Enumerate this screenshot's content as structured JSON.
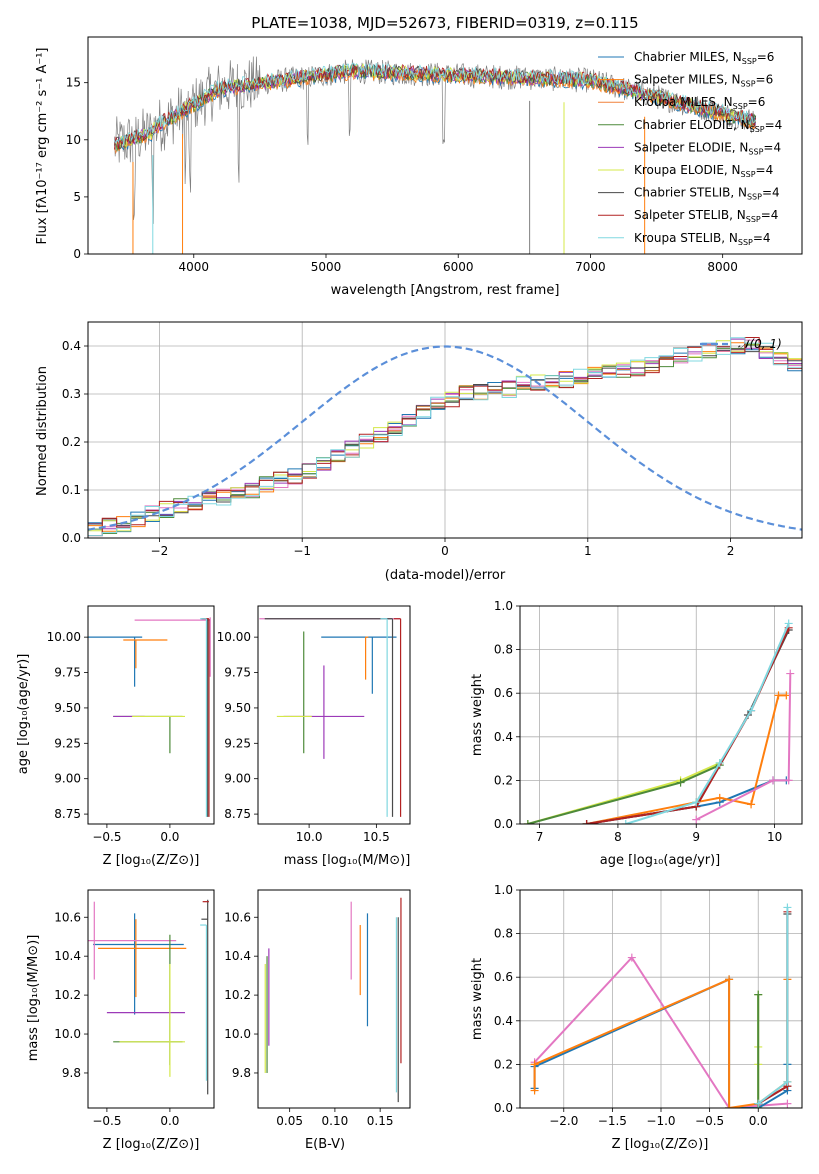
{
  "chart_data": [
    {
      "type": "line",
      "title": "PLATE=1038, MJD=52673, FIBERID=0319, z=0.115",
      "xlabel": "wavelength [Angstrom, rest frame]",
      "ylabel": "Flux [fλ10⁻¹⁷ erg cm⁻² s⁻¹ A⁻¹]",
      "xlim": [
        3200,
        8600
      ],
      "ylim": [
        0,
        19
      ],
      "xticks": [
        "4000",
        "5000",
        "6000",
        "7000",
        "8000"
      ],
      "yticks": [
        "0",
        "5",
        "10",
        "15"
      ],
      "legend_position": "upper-right",
      "data_range": [
        3400,
        8250
      ],
      "series": [
        {
          "name": "Chabrier MILES, NSSP=6",
          "label": "Chabrier MILES, N",
          "sub": "SSP",
          "suffix": "=6",
          "color": "#1f77b4"
        },
        {
          "name": "Salpeter MILES, NSSP=6",
          "label": "Salpeter MILES, N",
          "sub": "SSP",
          "suffix": "=6",
          "color": "#ff7f0e"
        },
        {
          "name": "Kroupa MILES, NSSP=6",
          "label": "Kroupa MILES, N",
          "sub": "SSP",
          "suffix": "=6",
          "color": "#f0813a"
        },
        {
          "name": "Chabrier ELODIE, NSSP=4",
          "label": "Chabrier ELODIE, N",
          "sub": "SSP",
          "suffix": "=4",
          "color": "#4d8a3a"
        },
        {
          "name": "Salpeter ELODIE, NSSP=4",
          "label": "Salpeter ELODIE, N",
          "sub": "SSP",
          "suffix": "=4",
          "color": "#9c3ab8"
        },
        {
          "name": "Kroupa ELODIE, NSSP=4",
          "label": "Kroupa ELODIE, N",
          "sub": "SSP",
          "suffix": "=4",
          "color": "#d4e84a"
        },
        {
          "name": "Chabrier STELIB, NSSP=4",
          "label": "Chabrier STELIB, N",
          "sub": "SSP",
          "suffix": "=4",
          "color": "#4a4a4a"
        },
        {
          "name": "Salpeter STELIB, NSSP=4",
          "label": "Salpeter STELIB, N",
          "sub": "SSP",
          "suffix": "=4",
          "color": "#b22222"
        },
        {
          "name": "Kroupa STELIB, NSSP=4",
          "label": "Kroupa STELIB, N",
          "sub": "SSP",
          "suffix": "=4",
          "color": "#80d8e0"
        }
      ],
      "data_color": "#808080"
    },
    {
      "type": "bar",
      "xlabel": "(data-model)/error",
      "ylabel": "Normed distribution",
      "xlim": [
        -2.5,
        2.5
      ],
      "ylim": [
        0,
        0.45
      ],
      "xticks": [
        "−2",
        "−1",
        "0",
        "1",
        "2"
      ],
      "yticks": [
        "0.0",
        "0.1",
        "0.2",
        "0.3",
        "0.4"
      ],
      "grid": true,
      "legend_position": "upper-right",
      "gaussian_label": "𝒩(0, 1)",
      "gaussian_color": "#5b8fd9",
      "bin_width": 0.1,
      "bin_start": -2.5,
      "base_values": [
        0.02,
        0.025,
        0.03,
        0.04,
        0.05,
        0.06,
        0.07,
        0.075,
        0.08,
        0.085,
        0.09,
        0.1,
        0.11,
        0.12,
        0.13,
        0.14,
        0.155,
        0.17,
        0.185,
        0.2,
        0.215,
        0.23,
        0.245,
        0.26,
        0.28,
        0.29,
        0.3,
        0.305,
        0.31,
        0.31,
        0.32,
        0.325,
        0.33,
        0.33,
        0.335,
        0.34,
        0.345,
        0.35,
        0.355,
        0.36,
        0.37,
        0.38,
        0.385,
        0.39,
        0.395,
        0.4,
        0.405,
        0.39,
        0.37,
        0.36,
        0.35,
        0.345,
        0.34,
        0.33,
        0.32,
        0.31,
        0.3,
        0.29,
        0.28,
        0.27,
        0.26,
        0.25,
        0.24,
        0.23,
        0.215,
        0.2,
        0.19,
        0.18,
        0.17,
        0.16,
        0.15,
        0.14,
        0.13,
        0.12,
        0.11,
        0.1,
        0.09,
        0.08,
        0.07,
        0.065,
        0.06,
        0.055,
        0.05,
        0.048,
        0.045,
        0.04,
        0.04,
        0.038,
        0.035,
        0.035,
        0.03,
        0.03,
        0.028,
        0.025,
        0.025,
        0.022,
        0.02,
        0.02,
        0.018,
        0.015
      ]
    },
    {
      "type": "scatter",
      "xlabel": "Z [log₁₀(Z/Z⊙)]",
      "ylabel": "age  [log₁₀(age/yr)]",
      "xlim": [
        -0.65,
        0.35
      ],
      "ylim": [
        8.68,
        10.22
      ],
      "xticks": [
        "−0.5",
        "0.0"
      ],
      "yticks": [
        "8.75",
        "9.00",
        "9.25",
        "9.50",
        "9.75",
        "10.00"
      ],
      "points": [
        {
          "x": -0.28,
          "y": 10.0,
          "xerr": [
            0.6,
            0.06
          ],
          "yerr": [
            0.35,
            0.0
          ],
          "color": "#1f77b4"
        },
        {
          "x": -0.27,
          "y": 9.98,
          "xerr": [
            0.1,
            0.25
          ],
          "yerr": [
            0.2,
            0.0
          ],
          "color": "#ff7f0e"
        },
        {
          "x": 0.32,
          "y": 10.12,
          "xerr": [
            0.6,
            0.0
          ],
          "yerr": [
            0.4,
            0.02
          ],
          "color": "#e377c2"
        },
        {
          "x": 0.0,
          "y": 9.44,
          "xerr": [
            0.45,
            0.1
          ],
          "yerr": [
            0.26,
            0.0
          ],
          "color": "#4d8a3a"
        },
        {
          "x": -0.3,
          "y": 9.44,
          "xerr": [
            0.15,
            0.1
          ],
          "yerr": [
            0.0,
            0.0
          ],
          "color": "#9c3ab8"
        },
        {
          "x": 0.0,
          "y": 9.44,
          "xerr": [
            0.3,
            0.12
          ],
          "yerr": [
            0.0,
            0.0
          ],
          "color": "#d4e84a"
        },
        {
          "x": 0.3,
          "y": 10.13,
          "xerr": [
            0.05,
            0.0
          ],
          "yerr": [
            1.4,
            0.0
          ],
          "color": "#4a4a4a"
        },
        {
          "x": 0.31,
          "y": 10.13,
          "xerr": [
            0.05,
            0.0
          ],
          "yerr": [
            1.4,
            0.0
          ],
          "color": "#b22222"
        },
        {
          "x": 0.29,
          "y": 10.13,
          "xerr": [
            0.05,
            0.0
          ],
          "yerr": [
            1.4,
            0.0
          ],
          "color": "#80d8e0"
        }
      ]
    },
    {
      "type": "scatter",
      "xlabel": "mass [log₁₀(M/M⊙)]",
      "xlim": [
        9.62,
        10.75
      ],
      "ylim": [
        8.68,
        10.22
      ],
      "xticks": [
        "10.0",
        "10.5"
      ],
      "yticks": [
        "8.75",
        "9.00",
        "9.25",
        "9.50",
        "9.75",
        "10.00"
      ],
      "points": [
        {
          "x": 10.47,
          "y": 10.0,
          "xerr": [
            0.38,
            0.18
          ],
          "yerr": [
            0.4,
            0.0
          ],
          "color": "#1f77b4"
        },
        {
          "x": 10.42,
          "y": 10.0,
          "xerr": [
            0.0,
            0.02
          ],
          "yerr": [
            0.3,
            0.0
          ],
          "color": "#ff7f0e"
        },
        {
          "x": 10.63,
          "y": 10.13,
          "xerr": [
            1.0,
            0.05
          ],
          "yerr": [
            0.0,
            0.0
          ],
          "color": "#e377c2"
        },
        {
          "x": 9.96,
          "y": 9.44,
          "xerr": [
            0.0,
            0.0
          ],
          "yerr": [
            0.26,
            0.6
          ],
          "color": "#4d8a3a"
        },
        {
          "x": 10.11,
          "y": 9.44,
          "xerr": [
            0.3,
            0.3
          ],
          "yerr": [
            0.3,
            0.36
          ],
          "color": "#9c3ab8"
        },
        {
          "x": 9.96,
          "y": 9.44,
          "xerr": [
            0.2,
            0.06
          ],
          "yerr": [
            0.0,
            0.0
          ],
          "color": "#d4e84a"
        },
        {
          "x": 10.62,
          "y": 10.13,
          "xerr": [
            0.95,
            0.0
          ],
          "yerr": [
            1.4,
            0.0
          ],
          "color": "#4a4a4a"
        },
        {
          "x": 10.68,
          "y": 10.13,
          "xerr": [
            0.05,
            0.0
          ],
          "yerr": [
            1.4,
            0.0
          ],
          "color": "#b22222"
        },
        {
          "x": 10.58,
          "y": 10.13,
          "xerr": [
            0.05,
            0.0
          ],
          "yerr": [
            1.4,
            0.0
          ],
          "color": "#80d8e0"
        }
      ]
    },
    {
      "type": "line",
      "xlabel": "age  [log₁₀(age/yr)]",
      "ylabel": "mass weight",
      "xlim": [
        6.75,
        10.35
      ],
      "ylim": [
        0,
        1.0
      ],
      "xticks": [
        "7",
        "8",
        "9",
        "10"
      ],
      "yticks": [
        "0.0",
        "0.2",
        "0.4",
        "0.6",
        "0.8",
        "1.0"
      ],
      "grid": true,
      "series": [
        {
          "color": "#d4e84a",
          "x": [
            6.85,
            8.8,
            9.3
          ],
          "y": [
            0.0,
            0.2,
            0.28
          ]
        },
        {
          "color": "#4d8a3a",
          "x": [
            6.85,
            8.8,
            9.3
          ],
          "y": [
            0.0,
            0.19,
            0.27
          ]
        },
        {
          "color": "#1f77b4",
          "x": [
            7.6,
            9.0,
            9.3,
            9.98,
            10.15
          ],
          "y": [
            0.0,
            0.08,
            0.1,
            0.2,
            0.2
          ]
        },
        {
          "color": "#ff7f0e",
          "x": [
            7.6,
            9.0,
            9.3,
            9.7,
            10.05,
            10.15
          ],
          "y": [
            0.0,
            0.1,
            0.12,
            0.09,
            0.59,
            0.59
          ]
        },
        {
          "color": "#e377c2",
          "x": [
            9.0,
            9.98,
            10.18,
            10.2
          ],
          "y": [
            0.02,
            0.2,
            0.2,
            0.69
          ]
        },
        {
          "color": "#4a4a4a",
          "x": [
            7.6,
            9.0,
            9.66,
            10.18
          ],
          "y": [
            0.0,
            0.08,
            0.5,
            0.89
          ]
        },
        {
          "color": "#b22222",
          "x": [
            7.6,
            9.0,
            9.7,
            10.18
          ],
          "y": [
            0.0,
            0.08,
            0.52,
            0.9
          ]
        },
        {
          "color": "#80d8e0",
          "x": [
            8.1,
            9.0,
            9.3,
            9.7,
            10.18
          ],
          "y": [
            0.0,
            0.1,
            0.28,
            0.52,
            0.92
          ]
        }
      ]
    },
    {
      "type": "scatter",
      "xlabel": "Z [log₁₀(Z/Z⊙)]",
      "ylabel": "mass [log₁₀(M/M⊙)]",
      "xlim": [
        -0.65,
        0.35
      ],
      "ylim": [
        9.62,
        10.74
      ],
      "xticks": [
        "−0.5",
        "0.0"
      ],
      "yticks": [
        "9.8",
        "10.0",
        "10.2",
        "10.4",
        "10.6"
      ],
      "points": [
        {
          "x": -0.28,
          "y": 10.46,
          "xerr": [
            0.33,
            0.39
          ],
          "yerr": [
            0.36,
            0.16
          ],
          "color": "#1f77b4"
        },
        {
          "x": -0.27,
          "y": 10.44,
          "xerr": [
            0.3,
            0.4
          ],
          "yerr": [
            0.25,
            0.15
          ],
          "color": "#ff7f0e"
        },
        {
          "x": -0.6,
          "y": 10.48,
          "xerr": [
            0.05,
            0.65
          ],
          "yerr": [
            0.2,
            0.2
          ],
          "color": "#e377c2"
        },
        {
          "x": 0.0,
          "y": 9.96,
          "xerr": [
            0.45,
            0.1
          ],
          "yerr": [
            0.12,
            0.55
          ],
          "color": "#4d8a3a"
        },
        {
          "x": -0.3,
          "y": 10.11,
          "xerr": [
            0.2,
            0.42
          ],
          "yerr": [
            0.0,
            0.0
          ],
          "color": "#9c3ab8"
        },
        {
          "x": 0.0,
          "y": 9.96,
          "xerr": [
            0.4,
            0.12
          ],
          "yerr": [
            0.18,
            0.4
          ],
          "color": "#d4e84a"
        },
        {
          "x": 0.3,
          "y": 10.59,
          "xerr": [
            0.05,
            0.0
          ],
          "yerr": [
            0.9,
            0.1
          ],
          "color": "#4a4a4a"
        },
        {
          "x": 0.31,
          "y": 10.68,
          "xerr": [
            0.05,
            0.0
          ],
          "yerr": [
            0.0,
            0.0
          ],
          "color": "#b22222"
        },
        {
          "x": 0.29,
          "y": 10.56,
          "xerr": [
            0.05,
            0.0
          ],
          "yerr": [
            0.8,
            0.0
          ],
          "color": "#80d8e0"
        }
      ]
    },
    {
      "type": "scatter",
      "xlabel": "E(B-V)",
      "xlim": [
        0.015,
        0.183
      ],
      "ylim": [
        9.62,
        10.74
      ],
      "xticks": [
        "0.05",
        "0.10",
        "0.15"
      ],
      "yticks": [
        "9.8",
        "10.0",
        "10.2",
        "10.4",
        "10.6"
      ],
      "points": [
        {
          "x": 0.136,
          "y": 10.44,
          "xerr": [
            0,
            0
          ],
          "yerr": [
            0.4,
            0.18
          ],
          "color": "#1f77b4"
        },
        {
          "x": 0.128,
          "y": 10.44,
          "xerr": [
            0,
            0
          ],
          "yerr": [
            0.24,
            0.12
          ],
          "color": "#ff7f0e"
        },
        {
          "x": 0.118,
          "y": 10.48,
          "xerr": [
            0,
            0
          ],
          "yerr": [
            0.2,
            0.2
          ],
          "color": "#e377c2"
        },
        {
          "x": 0.025,
          "y": 10.1,
          "xerr": [
            0,
            0
          ],
          "yerr": [
            0.3,
            0.3
          ],
          "color": "#4d8a3a"
        },
        {
          "x": 0.027,
          "y": 10.2,
          "xerr": [
            0,
            0
          ],
          "yerr": [
            0.26,
            0.24
          ],
          "color": "#9c3ab8"
        },
        {
          "x": 0.023,
          "y": 10.1,
          "xerr": [
            0,
            0
          ],
          "yerr": [
            0.3,
            0.26
          ],
          "color": "#d4e84a"
        },
        {
          "x": 0.17,
          "y": 10.1,
          "xerr": [
            0,
            0
          ],
          "yerr": [
            0.45,
            0.5
          ],
          "color": "#4a4a4a"
        },
        {
          "x": 0.173,
          "y": 10.3,
          "xerr": [
            0,
            0
          ],
          "yerr": [
            0.45,
            0.4
          ],
          "color": "#b22222"
        },
        {
          "x": 0.168,
          "y": 10.1,
          "xerr": [
            0,
            0
          ],
          "yerr": [
            0.4,
            0.5
          ],
          "color": "#80d8e0"
        }
      ]
    },
    {
      "type": "line",
      "xlabel": "Z [log₁₀(Z/Z⊙)]",
      "ylabel": "mass weight",
      "xlim": [
        -2.45,
        0.45
      ],
      "ylim": [
        0,
        1.0
      ],
      "xticks": [
        "−2.0",
        "−1.5",
        "−1.0",
        "−0.5",
        "0.0"
      ],
      "yticks": [
        "0.0",
        "0.2",
        "0.4",
        "0.6",
        "0.8",
        "1.0"
      ],
      "grid": true,
      "series": [
        {
          "color": "#e377c2",
          "x": [
            -2.3,
            -1.3,
            -0.3,
            0.3
          ],
          "y": [
            0.21,
            0.69,
            0.0,
            0.02
          ]
        },
        {
          "color": "#1f77b4",
          "x": [
            -2.3,
            -2.3,
            -0.3,
            -0.3,
            0.0,
            0.3,
            0.3
          ],
          "y": [
            0.09,
            0.19,
            0.59,
            0.0,
            0.0,
            0.08,
            0.2
          ]
        },
        {
          "color": "#ff7f0e",
          "x": [
            -2.3,
            -2.3,
            -0.3,
            -0.3,
            0.0,
            0.3,
            0.3
          ],
          "y": [
            0.08,
            0.2,
            0.59,
            0.0,
            0.02,
            0.12,
            0.59
          ]
        },
        {
          "color": "#d4e84a",
          "x": [
            0.0,
            0.0,
            0.0,
            0.0
          ],
          "y": [
            0.0,
            0.2,
            0.28,
            0.52
          ]
        },
        {
          "color": "#4d8a3a",
          "x": [
            0.0,
            0.0
          ],
          "y": [
            0.0,
            0.52
          ]
        },
        {
          "color": "#4a4a4a",
          "x": [
            0.0,
            0.3,
            0.3
          ],
          "y": [
            0.02,
            0.1,
            0.89
          ]
        },
        {
          "color": "#b22222",
          "x": [
            0.0,
            0.3,
            0.3
          ],
          "y": [
            0.02,
            0.1,
            0.9
          ]
        },
        {
          "color": "#80d8e0",
          "x": [
            0.0,
            0.3,
            0.3
          ],
          "y": [
            0.02,
            0.12,
            0.92
          ]
        }
      ]
    }
  ]
}
